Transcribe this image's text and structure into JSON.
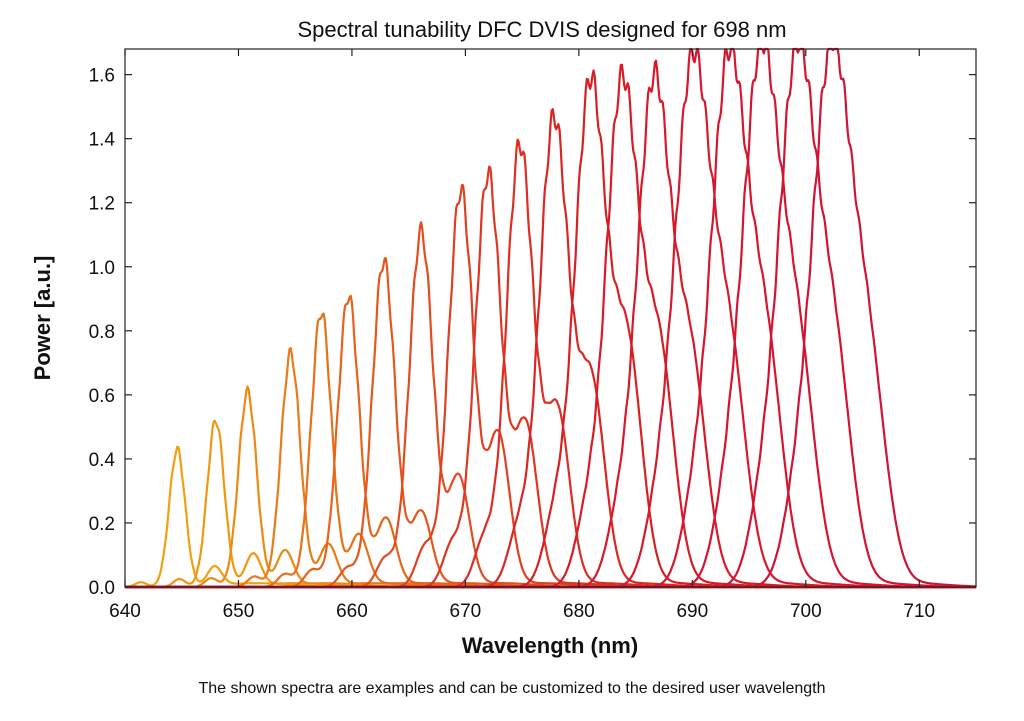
{
  "chart_data": {
    "type": "line",
    "title": "Spectral tunability DFC DVIS designed for 698 nm",
    "xlabel": "Wavelength (nm)",
    "ylabel": "Power [a.u.]",
    "xlim": [
      640,
      715
    ],
    "ylim": [
      0,
      1.68
    ],
    "xticks": [
      640,
      650,
      660,
      670,
      680,
      690,
      700,
      710
    ],
    "yticks": [
      0.0,
      0.2,
      0.4,
      0.6,
      0.8,
      1.0,
      1.2,
      1.4,
      1.6
    ],
    "tick_format_y": 1,
    "grid": false,
    "series": [
      {
        "center": 644.6,
        "peak": 0.43,
        "width": 0.7,
        "color": "#f0a010",
        "side": 0.06
      },
      {
        "center": 648.0,
        "peak": 0.52,
        "width": 0.75,
        "color": "#ee9812",
        "side": 0.1
      },
      {
        "center": 650.8,
        "peak": 0.61,
        "width": 0.8,
        "color": "#ec8a14",
        "side": 0.11
      },
      {
        "center": 654.6,
        "peak": 0.73,
        "width": 0.85,
        "color": "#ea7c16",
        "side": 0.13
      },
      {
        "center": 657.3,
        "peak": 0.86,
        "width": 0.9,
        "color": "#e87018",
        "side": 0.16
      },
      {
        "center": 659.7,
        "peak": 0.91,
        "width": 0.95,
        "color": "#e6641a",
        "side": 0.21
      },
      {
        "center": 662.8,
        "peak": 1.02,
        "width": 1.0,
        "color": "#e4581c",
        "side": 0.23
      },
      {
        "center": 666.1,
        "peak": 1.11,
        "width": 1.05,
        "color": "#e24c1e",
        "side": 0.34
      },
      {
        "center": 669.6,
        "peak": 1.24,
        "width": 1.1,
        "color": "#e04020",
        "side": 0.47
      },
      {
        "center": 672.0,
        "peak": 1.29,
        "width": 1.15,
        "color": "#de3622",
        "side": 0.5
      },
      {
        "center": 674.8,
        "peak": 1.38,
        "width": 1.2,
        "color": "#dc2e22",
        "side": 0.54
      },
      {
        "center": 677.8,
        "peak": 1.46,
        "width": 1.3,
        "color": "#da2622",
        "side": 0.62
      },
      {
        "center": 681.0,
        "peak": 1.57,
        "width": 1.4,
        "color": "#d82024",
        "side": 0.72
      },
      {
        "center": 683.8,
        "peak": 1.57,
        "width": 1.45,
        "color": "#d81c26",
        "side": 0.7
      },
      {
        "center": 686.6,
        "peak": 1.57,
        "width": 1.5,
        "color": "#d81a28",
        "side": 0.66
      },
      {
        "center": 690.0,
        "peak": 1.62,
        "width": 1.6,
        "color": "#d8182c",
        "side": 0.68
      },
      {
        "center": 693.2,
        "peak": 1.63,
        "width": 1.6,
        "color": "#d6162e",
        "side": 0.7
      },
      {
        "center": 696.0,
        "peak": 1.64,
        "width": 1.65,
        "color": "#d41430",
        "side": 0.69
      },
      {
        "center": 699.2,
        "peak": 1.64,
        "width": 1.65,
        "color": "#d21432",
        "side": 0.69
      },
      {
        "center": 702.2,
        "peak": 1.64,
        "width": 1.7,
        "color": "#d01434",
        "side": 0.66
      }
    ]
  },
  "caption": "The shown spectra are examples and can be customized to the desired user wavelength"
}
